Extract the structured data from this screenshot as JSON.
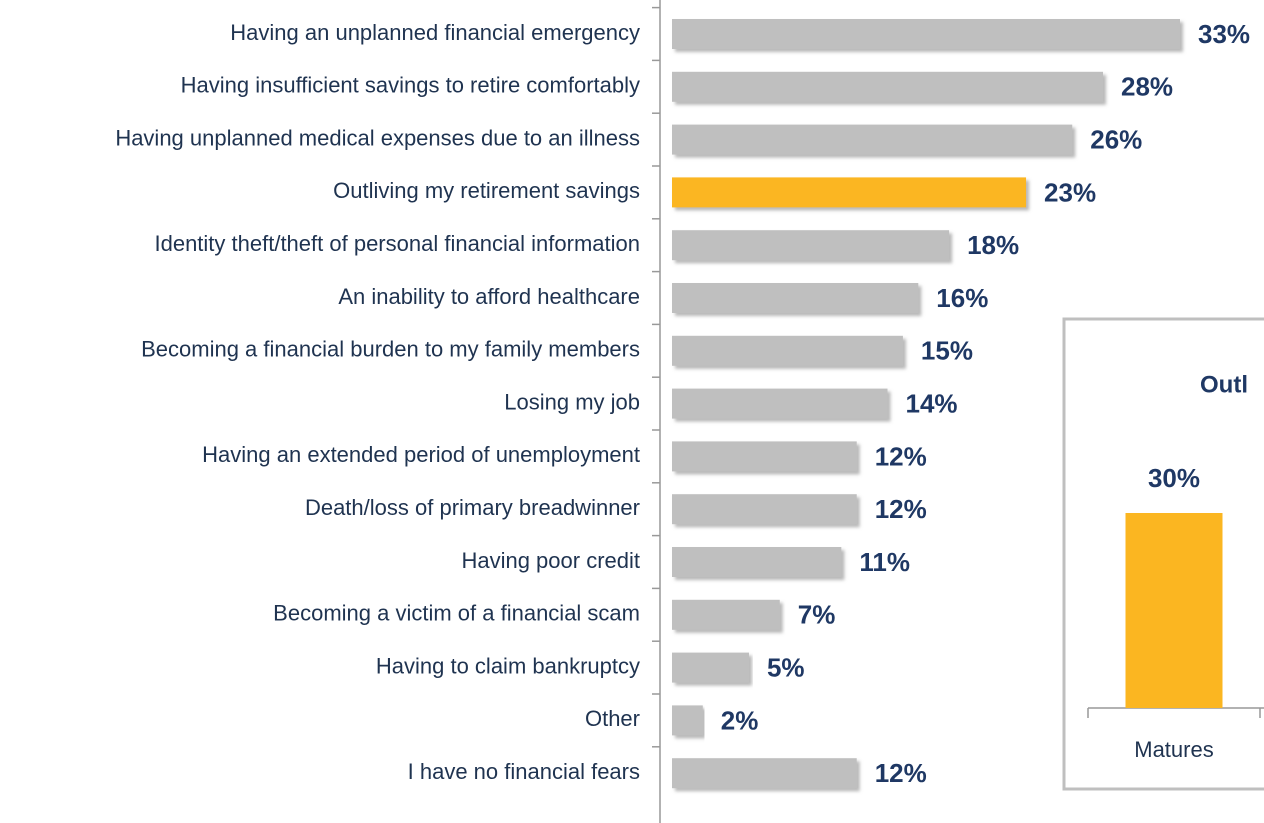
{
  "chart_data": [
    {
      "type": "barh",
      "categories": [
        "Having an unplanned financial emergency",
        "Having insufficient savings to retire comfortably",
        "Having unplanned medical expenses due to an illness",
        "Outliving my retirement savings",
        "Identity theft/theft of personal financial information",
        "An inability to afford healthcare",
        "Becoming a financial burden to my family members",
        "Losing my job",
        "Having an extended period of unemployment",
        "Death/loss of primary breadwinner",
        "Having poor credit",
        "Becoming a victim of a financial scam",
        "Having to claim bankruptcy",
        "Other",
        "I have no financial fears"
      ],
      "values": [
        33,
        28,
        26,
        23,
        18,
        16,
        15,
        14,
        12,
        12,
        11,
        7,
        5,
        2,
        12
      ],
      "value_labels": [
        "33%",
        "28%",
        "26%",
        "23%",
        "18%",
        "16%",
        "15%",
        "14%",
        "12%",
        "12%",
        "11%",
        "7%",
        "5%",
        "2%",
        "12%"
      ],
      "colors": [
        "#bfbfbf",
        "#bfbfbf",
        "#bfbfbf",
        "#fbb621",
        "#bfbfbf",
        "#bfbfbf",
        "#bfbfbf",
        "#bfbfbf",
        "#bfbfbf",
        "#bfbfbf",
        "#bfbfbf",
        "#bfbfbf",
        "#bfbfbf",
        "#bfbfbf",
        "#bfbfbf"
      ],
      "xlim": [
        0,
        33
      ]
    },
    {
      "type": "bar",
      "title": "Outl",
      "categories": [
        "Matures"
      ],
      "values": [
        30
      ],
      "value_labels": [
        "30%"
      ],
      "color": "#fbb621",
      "ylim": [
        0,
        30
      ]
    }
  ]
}
